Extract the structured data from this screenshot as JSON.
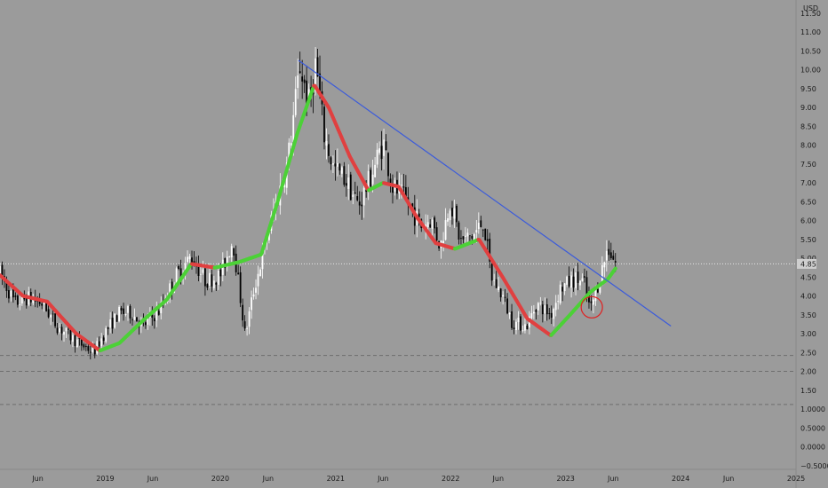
{
  "chart_data": {
    "type": "candlestick",
    "currency_label": "USD",
    "last_price_label": "4.85",
    "last_price": 4.85,
    "ylim": [
      -0.6,
      11.85
    ],
    "y_ticks": [
      {
        "value": 11.5,
        "label": "11.50"
      },
      {
        "value": 11.0,
        "label": "11.00"
      },
      {
        "value": 10.5,
        "label": "10.50"
      },
      {
        "value": 10.0,
        "label": "10.00"
      },
      {
        "value": 9.5,
        "label": "9.50"
      },
      {
        "value": 9.0,
        "label": "9.00"
      },
      {
        "value": 8.5,
        "label": "8.50"
      },
      {
        "value": 8.0,
        "label": "8.00"
      },
      {
        "value": 7.5,
        "label": "7.50"
      },
      {
        "value": 7.0,
        "label": "7.00"
      },
      {
        "value": 6.5,
        "label": "6.50"
      },
      {
        "value": 6.0,
        "label": "6.00"
      },
      {
        "value": 5.5,
        "label": "5.50"
      },
      {
        "value": 5.0,
        "label": "5.00"
      },
      {
        "value": 4.5,
        "label": "4.50"
      },
      {
        "value": 4.0,
        "label": "4.00"
      },
      {
        "value": 3.5,
        "label": "3.50"
      },
      {
        "value": 3.0,
        "label": "3.00"
      },
      {
        "value": 2.5,
        "label": "2.50"
      },
      {
        "value": 2.0,
        "label": "2.00"
      },
      {
        "value": 1.5,
        "label": "1.50"
      },
      {
        "value": 1.0,
        "label": "1.0000"
      },
      {
        "value": 0.5,
        "label": "0.5000"
      },
      {
        "value": 0.0,
        "label": "0.0000"
      },
      {
        "value": -0.5,
        "label": "−0.5000"
      }
    ],
    "xlim": [
      "2018-02-01",
      "2025-01-01"
    ],
    "x_ticks": [
      {
        "date": "2018-06-01",
        "label": "Jun"
      },
      {
        "date": "2019-01-01",
        "label": "2019"
      },
      {
        "date": "2019-06-01",
        "label": "Jun"
      },
      {
        "date": "2020-01-01",
        "label": "2020"
      },
      {
        "date": "2020-06-01",
        "label": "Jun"
      },
      {
        "date": "2021-01-01",
        "label": "2021"
      },
      {
        "date": "2021-06-01",
        "label": "Jun"
      },
      {
        "date": "2022-01-01",
        "label": "2022"
      },
      {
        "date": "2022-06-01",
        "label": "Jun"
      },
      {
        "date": "2023-01-01",
        "label": "2023"
      },
      {
        "date": "2023-06-01",
        "label": "Jun"
      },
      {
        "date": "2024-01-01",
        "label": "2024"
      },
      {
        "date": "2024-06-01",
        "label": "Jun"
      },
      {
        "date": "2025-01-01",
        "label": "2025"
      }
    ],
    "price_path": [
      [
        "2018-02-01",
        4.6
      ],
      [
        "2018-03-20",
        3.8
      ],
      [
        "2018-05-01",
        3.95
      ],
      [
        "2018-06-15",
        3.8
      ],
      [
        "2018-08-01",
        3.2
      ],
      [
        "2018-10-01",
        2.8
      ],
      [
        "2018-11-25",
        2.5
      ],
      [
        "2019-01-01",
        3.05
      ],
      [
        "2019-02-15",
        3.55
      ],
      [
        "2019-03-25",
        3.55
      ],
      [
        "2019-05-01",
        3.2
      ],
      [
        "2019-06-20",
        3.6
      ],
      [
        "2019-08-15",
        4.55
      ],
      [
        "2019-10-01",
        5.05
      ],
      [
        "2019-11-15",
        4.4
      ],
      [
        "2020-01-01",
        4.55
      ],
      [
        "2020-02-10",
        5.5
      ],
      [
        "2020-03-20",
        2.95
      ],
      [
        "2020-04-15",
        4.1
      ],
      [
        "2020-05-15",
        5.1
      ],
      [
        "2020-06-20",
        6.3
      ],
      [
        "2020-08-01",
        7.5
      ],
      [
        "2020-09-10",
        10.1
      ],
      [
        "2020-10-10",
        9.05
      ],
      [
        "2020-10-30",
        10.2
      ],
      [
        "2020-11-25",
        8.3
      ],
      [
        "2020-12-25",
        7.4
      ],
      [
        "2021-02-01",
        7.1
      ],
      [
        "2021-03-15",
        6.4
      ],
      [
        "2021-04-15",
        7.0
      ],
      [
        "2021-06-01",
        8.1
      ],
      [
        "2021-07-01",
        6.9
      ],
      [
        "2021-08-15",
        6.5
      ],
      [
        "2021-09-30",
        5.85
      ],
      [
        "2021-10-30",
        6.05
      ],
      [
        "2021-11-30",
        5.3
      ],
      [
        "2021-12-30",
        6.55
      ],
      [
        "2022-02-01",
        5.45
      ],
      [
        "2022-03-15",
        5.6
      ],
      [
        "2022-04-15",
        6.0
      ],
      [
        "2022-05-10",
        4.5
      ],
      [
        "2022-06-15",
        4.0
      ],
      [
        "2022-07-15",
        3.3
      ],
      [
        "2022-08-30",
        3.2
      ],
      [
        "2022-10-01",
        3.8
      ],
      [
        "2022-11-15",
        3.5
      ],
      [
        "2022-12-15",
        4.2
      ],
      [
        "2023-01-30",
        4.45
      ],
      [
        "2023-03-01",
        4.35
      ],
      [
        "2023-03-20",
        3.6
      ],
      [
        "2023-04-20",
        4.5
      ],
      [
        "2023-05-15",
        5.3
      ],
      [
        "2023-06-10",
        4.85
      ]
    ],
    "indicator_line": [
      [
        "2018-02-01",
        4.55
      ],
      [
        "2018-04-15",
        4.0
      ],
      [
        "2018-07-01",
        3.85
      ],
      [
        "2018-10-01",
        3.0
      ],
      [
        "2018-12-15",
        2.55
      ],
      [
        "2019-02-15",
        2.75
      ],
      [
        "2019-05-01",
        3.35
      ],
      [
        "2019-07-15",
        3.9
      ],
      [
        "2019-10-01",
        4.85
      ],
      [
        "2019-12-15",
        4.75
      ],
      [
        "2020-03-01",
        4.9
      ],
      [
        "2020-05-10",
        5.1
      ],
      [
        "2020-07-01",
        6.5
      ],
      [
        "2020-09-01",
        8.3
      ],
      [
        "2020-10-25",
        9.6
      ],
      [
        "2020-12-10",
        9.0
      ],
      [
        "2021-02-15",
        7.7
      ],
      [
        "2021-04-15",
        6.8
      ],
      [
        "2021-06-01",
        7.0
      ],
      [
        "2021-07-20",
        6.9
      ],
      [
        "2021-09-15",
        6.1
      ],
      [
        "2021-11-15",
        5.4
      ],
      [
        "2022-01-15",
        5.25
      ],
      [
        "2022-04-01",
        5.5
      ],
      [
        "2022-06-15",
        4.5
      ],
      [
        "2022-09-01",
        3.4
      ],
      [
        "2022-11-15",
        2.95
      ],
      [
        "2023-01-15",
        3.5
      ],
      [
        "2023-03-20",
        4.1
      ],
      [
        "2023-05-15",
        4.45
      ],
      [
        "2023-06-10",
        4.75
      ]
    ],
    "trendline": {
      "start": [
        "2020-09-05",
        10.25
      ],
      "end": [
        "2023-12-01",
        3.2
      ],
      "color": "#3b5bdb"
    },
    "circle_annotation": {
      "date": "2023-03-25",
      "value": 3.7,
      "color": "#e02020"
    },
    "dashed_levels": [
      2.42,
      2.0,
      1.12
    ],
    "colors": {
      "background": "#9b9b9b",
      "up_candle": "#ffffff",
      "down_candle": "#000000",
      "indicator_up": "#4cd137",
      "indicator_down": "#e04040",
      "trendline": "#3b5bdb",
      "dotted_price_line": "#e8e8e8",
      "last_price_badge": "#cfcfcf"
    }
  }
}
